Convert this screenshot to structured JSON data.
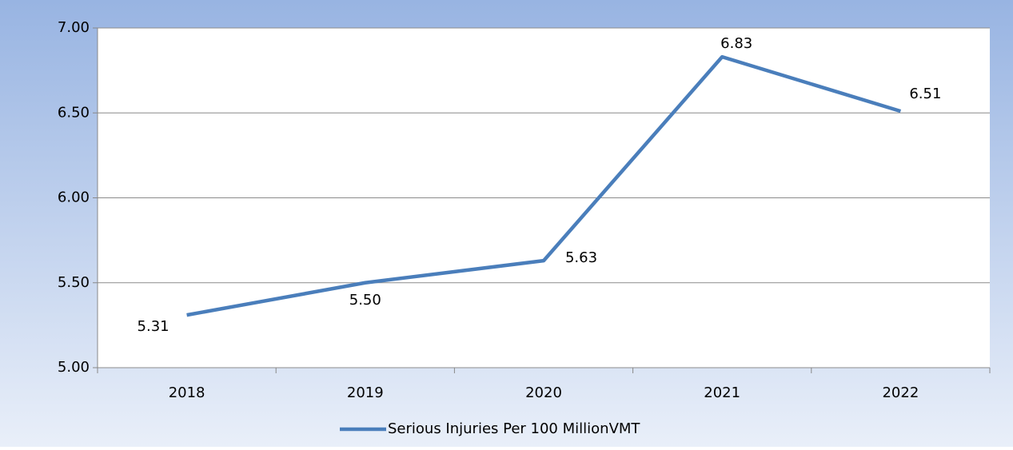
{
  "chart_data": {
    "type": "line",
    "categories": [
      "2018",
      "2019",
      "2020",
      "2021",
      "2022"
    ],
    "series": [
      {
        "name": "Serious Injuries Per 100 MillionVMT",
        "color": "#4a7ebb",
        "values": [
          5.31,
          5.5,
          5.63,
          6.83,
          6.51
        ],
        "value_labels": [
          "5.31",
          "5.50",
          "5.63",
          "6.83",
          "6.51"
        ]
      }
    ],
    "ylim": [
      5,
      7
    ],
    "yticks": [
      {
        "value": 5,
        "label": "5.00"
      },
      {
        "value": 5.5,
        "label": "5.50"
      },
      {
        "value": 6,
        "label": "6.00"
      },
      {
        "value": 6.5,
        "label": "6.50"
      },
      {
        "value": 7,
        "label": "7.00"
      }
    ],
    "grid": true,
    "legend": "bottom"
  }
}
